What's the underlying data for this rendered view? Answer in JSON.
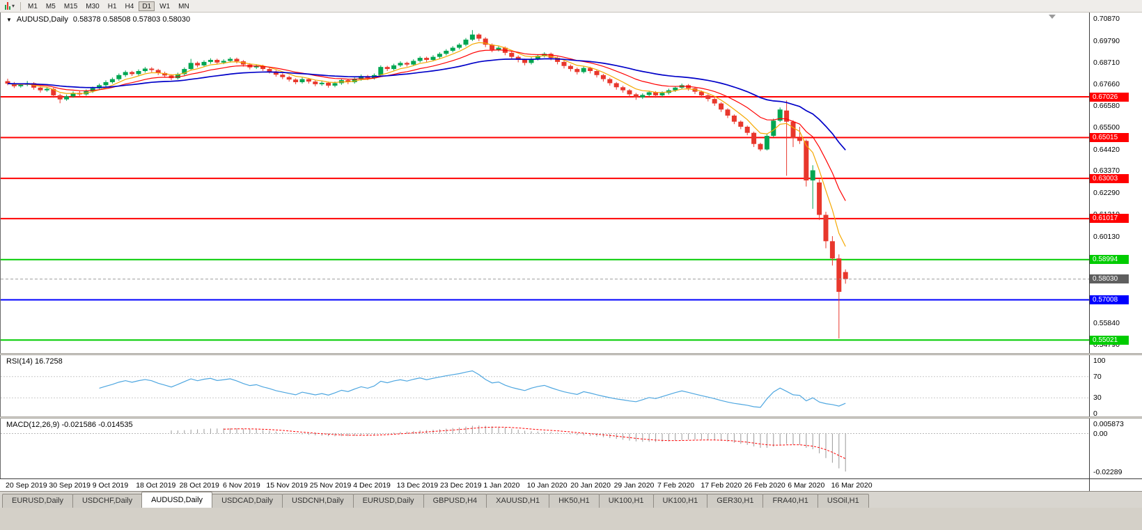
{
  "toolbar": {
    "icons": {
      "chart_menu": "candlestick-chart-icon",
      "dropdown": "chevron-down-icon",
      "shift_marker": "down-triangle-icon"
    },
    "timeframes": [
      {
        "label": "M1",
        "active": false
      },
      {
        "label": "M5",
        "active": false
      },
      {
        "label": "M15",
        "active": false
      },
      {
        "label": "M30",
        "active": false
      },
      {
        "label": "H1",
        "active": false
      },
      {
        "label": "H4",
        "active": false
      },
      {
        "label": "D1",
        "active": true
      },
      {
        "label": "W1",
        "active": false
      },
      {
        "label": "MN",
        "active": false
      }
    ]
  },
  "chart": {
    "title_marker": "▼",
    "symbol": "AUDUSD,Daily",
    "ohlc_line": "0.58378 0.58508 0.57803 0.58030",
    "scale": {
      "max": 0.7105,
      "min": 0.5448
    },
    "price_ticks": [
      {
        "label": "0.70870",
        "value": 0.7087
      },
      {
        "label": "0.69790",
        "value": 0.6979
      },
      {
        "label": "0.68710",
        "value": 0.6871
      },
      {
        "label": "0.67660",
        "value": 0.6766
      },
      {
        "label": "0.66580",
        "value": 0.6658
      },
      {
        "label": "0.65500",
        "value": 0.655
      },
      {
        "label": "0.64420",
        "value": 0.6442
      },
      {
        "label": "0.63370",
        "value": 0.6337
      },
      {
        "label": "0.62290",
        "value": 0.6229
      },
      {
        "label": "0.61210",
        "value": 0.6121
      },
      {
        "label": "0.60130",
        "value": 0.6013
      },
      {
        "label": "0.59050",
        "value": 0.5905
      },
      {
        "label": "0.57970",
        "value": 0.5797
      },
      {
        "label": "0.56890",
        "value": 0.5689
      },
      {
        "label": "0.55840",
        "value": 0.5584
      },
      {
        "label": "0.54790",
        "value": 0.5479
      }
    ],
    "levels": [
      {
        "label": "0.67026",
        "value": 0.67026,
        "color": "#ff0000"
      },
      {
        "label": "0.65015",
        "value": 0.65015,
        "color": "#ff0000"
      },
      {
        "label": "0.63003",
        "value": 0.63003,
        "color": "#ff0000"
      },
      {
        "label": "0.61017",
        "value": 0.61017,
        "color": "#ff0000"
      },
      {
        "label": "0.58994",
        "value": 0.58994,
        "color": "#00cc00"
      },
      {
        "label": "0.57008",
        "value": 0.57008,
        "color": "#0000ff"
      },
      {
        "label": "0.55021",
        "value": 0.55021,
        "color": "#00cc00"
      }
    ],
    "bid": {
      "label": "0.58030",
      "value": 0.5803,
      "color": "#5f5f5f"
    }
  },
  "rsi_panel": {
    "label": "RSI(14) 16.7258",
    "ticks": [
      {
        "label": "100",
        "value": 100
      },
      {
        "label": "70",
        "value": 70
      },
      {
        "label": "30",
        "value": 30
      },
      {
        "label": "0",
        "value": 0
      }
    ],
    "guide_levels": [
      70,
      30
    ],
    "line_color": "#4da6e0"
  },
  "macd_panel": {
    "label": "MACD(12,26,9) -0.021586 -0.014535",
    "axis_top": "0.005873",
    "axis_zero": "0.00",
    "axis_bottom": "-0.02289",
    "histogram_color": "#9a9a9a",
    "signal_color": "#ff0000"
  },
  "date_axis": [
    "20 Sep 2019",
    "30 Sep 2019",
    "9 Oct 2019",
    "18 Oct 2019",
    "28 Oct 2019",
    "6 Nov 2019",
    "15 Nov 2019",
    "25 Nov 2019",
    "4 Dec 2019",
    "13 Dec 2019",
    "23 Dec 2019",
    "1 Jan 2020",
    "10 Jan 2020",
    "20 Jan 2020",
    "29 Jan 2020",
    "7 Feb 2020",
    "17 Feb 2020",
    "26 Feb 2020",
    "6 Mar 2020",
    "16 Mar 2020"
  ],
  "tabs": [
    {
      "label": "EURUSD,Daily",
      "active": false
    },
    {
      "label": "USDCHF,Daily",
      "active": false
    },
    {
      "label": "AUDUSD,Daily",
      "active": true
    },
    {
      "label": "USDCAD,Daily",
      "active": false
    },
    {
      "label": "USDCNH,Daily",
      "active": false
    },
    {
      "label": "EURUSD,Daily",
      "active": false
    },
    {
      "label": "GBPUSD,H4",
      "active": false
    },
    {
      "label": "XAUUSD,H1",
      "active": false
    },
    {
      "label": "HK50,H1",
      "active": false
    },
    {
      "label": "UK100,H1",
      "active": false
    },
    {
      "label": "UK100,H1",
      "active": false
    },
    {
      "label": "GER30,H1",
      "active": false
    },
    {
      "label": "FRA40,H1",
      "active": false
    },
    {
      "label": "USOil,H1",
      "active": false
    }
  ],
  "colors": {
    "candle_up": "#00a651",
    "candle_down": "#e8372c",
    "bid_line": "#9c9c9c",
    "guide_dotted": "#c8c8c8"
  },
  "chart_data": {
    "type": "candlestick",
    "symbol": "AUDUSD",
    "timeframe": "Daily",
    "title": "AUDUSD,Daily 0.58378 0.58508 0.57803 0.58030",
    "y_range": [
      0.5448,
      0.7105
    ],
    "x_tick_labels": [
      "20 Sep 2019",
      "30 Sep 2019",
      "9 Oct 2019",
      "18 Oct 2019",
      "28 Oct 2019",
      "6 Nov 2019",
      "15 Nov 2019",
      "25 Nov 2019",
      "4 Dec 2019",
      "13 Dec 2019",
      "23 Dec 2019",
      "1 Jan 2020",
      "10 Jan 2020",
      "20 Jan 2020",
      "29 Jan 2020",
      "7 Feb 2020",
      "17 Feb 2020",
      "26 Feb 2020",
      "6 Mar 2020",
      "16 Mar 2020"
    ],
    "ohlc": [
      [
        0.678,
        0.6792,
        0.676,
        0.6768
      ],
      [
        0.6768,
        0.6776,
        0.6746,
        0.6755
      ],
      [
        0.6755,
        0.677,
        0.6748,
        0.6762
      ],
      [
        0.6762,
        0.6781,
        0.6755,
        0.677
      ],
      [
        0.677,
        0.6775,
        0.6738,
        0.6748
      ],
      [
        0.6748,
        0.6756,
        0.6724,
        0.6735
      ],
      [
        0.6735,
        0.6752,
        0.6728,
        0.6742
      ],
      [
        0.6742,
        0.6748,
        0.6698,
        0.671
      ],
      [
        0.671,
        0.6718,
        0.6671,
        0.669
      ],
      [
        0.669,
        0.6714,
        0.6683,
        0.6705
      ],
      [
        0.6705,
        0.673,
        0.6698,
        0.6722
      ],
      [
        0.6722,
        0.6731,
        0.6703,
        0.6715
      ],
      [
        0.6715,
        0.6739,
        0.6708,
        0.673
      ],
      [
        0.673,
        0.6753,
        0.6722,
        0.6745
      ],
      [
        0.6745,
        0.6768,
        0.6738,
        0.676
      ],
      [
        0.676,
        0.6784,
        0.6752,
        0.6775
      ],
      [
        0.6775,
        0.6798,
        0.6768,
        0.679
      ],
      [
        0.679,
        0.6818,
        0.6782,
        0.681
      ],
      [
        0.681,
        0.6833,
        0.6801,
        0.6825
      ],
      [
        0.6825,
        0.6831,
        0.6806,
        0.6815
      ],
      [
        0.6815,
        0.6838,
        0.6808,
        0.683
      ],
      [
        0.683,
        0.685,
        0.6822,
        0.6842
      ],
      [
        0.6842,
        0.6849,
        0.6824,
        0.6835
      ],
      [
        0.6835,
        0.6841,
        0.681,
        0.682
      ],
      [
        0.682,
        0.6827,
        0.6798,
        0.6808
      ],
      [
        0.6808,
        0.6814,
        0.6785,
        0.6795
      ],
      [
        0.6795,
        0.6822,
        0.6788,
        0.6815
      ],
      [
        0.6815,
        0.6848,
        0.6808,
        0.684
      ],
      [
        0.684,
        0.689,
        0.6833,
        0.687
      ],
      [
        0.687,
        0.6877,
        0.6848,
        0.6858
      ],
      [
        0.6858,
        0.6883,
        0.6851,
        0.6875
      ],
      [
        0.6875,
        0.6893,
        0.6866,
        0.6885
      ],
      [
        0.6885,
        0.6891,
        0.6862,
        0.6872
      ],
      [
        0.6872,
        0.6888,
        0.6864,
        0.688
      ],
      [
        0.688,
        0.6898,
        0.6872,
        0.689
      ],
      [
        0.689,
        0.6896,
        0.6868,
        0.6878
      ],
      [
        0.6878,
        0.6884,
        0.6852,
        0.6862
      ],
      [
        0.6862,
        0.6869,
        0.6838,
        0.6848
      ],
      [
        0.6848,
        0.6863,
        0.684,
        0.6855
      ],
      [
        0.6855,
        0.6861,
        0.683,
        0.684
      ],
      [
        0.684,
        0.6847,
        0.6818,
        0.6828
      ],
      [
        0.6828,
        0.6834,
        0.6802,
        0.6812
      ],
      [
        0.6812,
        0.6819,
        0.679,
        0.68
      ],
      [
        0.68,
        0.6807,
        0.6778,
        0.6788
      ],
      [
        0.6788,
        0.6794,
        0.6765,
        0.6775
      ],
      [
        0.6775,
        0.6798,
        0.6768,
        0.679
      ],
      [
        0.679,
        0.6796,
        0.6768,
        0.6778
      ],
      [
        0.6778,
        0.6784,
        0.6755,
        0.6765
      ],
      [
        0.6765,
        0.678,
        0.6757,
        0.6772
      ],
      [
        0.6772,
        0.6778,
        0.6748,
        0.6758
      ],
      [
        0.6758,
        0.6778,
        0.675,
        0.677
      ],
      [
        0.677,
        0.6793,
        0.6762,
        0.6785
      ],
      [
        0.6785,
        0.6791,
        0.6765,
        0.6775
      ],
      [
        0.6775,
        0.6798,
        0.6768,
        0.679
      ],
      [
        0.679,
        0.6813,
        0.6782,
        0.6805
      ],
      [
        0.6805,
        0.6811,
        0.6785,
        0.6795
      ],
      [
        0.6795,
        0.6818,
        0.6788,
        0.681
      ],
      [
        0.681,
        0.6858,
        0.6803,
        0.685
      ],
      [
        0.685,
        0.6856,
        0.683,
        0.684
      ],
      [
        0.684,
        0.6866,
        0.6833,
        0.6858
      ],
      [
        0.6858,
        0.6878,
        0.685,
        0.687
      ],
      [
        0.687,
        0.6876,
        0.6852,
        0.6862
      ],
      [
        0.6862,
        0.6888,
        0.6855,
        0.688
      ],
      [
        0.688,
        0.6903,
        0.6872,
        0.6895
      ],
      [
        0.6895,
        0.6901,
        0.6875,
        0.6885
      ],
      [
        0.6885,
        0.6908,
        0.6878,
        0.69
      ],
      [
        0.69,
        0.6923,
        0.6892,
        0.6915
      ],
      [
        0.6915,
        0.6938,
        0.6907,
        0.693
      ],
      [
        0.693,
        0.6953,
        0.6922,
        0.6945
      ],
      [
        0.6945,
        0.6968,
        0.6937,
        0.696
      ],
      [
        0.696,
        0.6993,
        0.6952,
        0.6985
      ],
      [
        0.6985,
        0.7032,
        0.6978,
        0.701
      ],
      [
        0.701,
        0.7016,
        0.6978,
        0.699
      ],
      [
        0.699,
        0.6997,
        0.6948,
        0.696
      ],
      [
        0.696,
        0.6966,
        0.6923,
        0.6935
      ],
      [
        0.6935,
        0.6953,
        0.6927,
        0.6945
      ],
      [
        0.6945,
        0.6951,
        0.6908,
        0.692
      ],
      [
        0.692,
        0.6926,
        0.6888,
        0.69
      ],
      [
        0.69,
        0.6907,
        0.6873,
        0.6885
      ],
      [
        0.6885,
        0.6891,
        0.6858,
        0.687
      ],
      [
        0.687,
        0.6898,
        0.6862,
        0.689
      ],
      [
        0.689,
        0.6913,
        0.6882,
        0.6905
      ],
      [
        0.6905,
        0.6923,
        0.6897,
        0.6915
      ],
      [
        0.6915,
        0.6921,
        0.6883,
        0.6895
      ],
      [
        0.6895,
        0.6901,
        0.6863,
        0.6875
      ],
      [
        0.6875,
        0.6881,
        0.6843,
        0.6855
      ],
      [
        0.6855,
        0.6862,
        0.6828,
        0.684
      ],
      [
        0.684,
        0.6847,
        0.6813,
        0.6825
      ],
      [
        0.6825,
        0.6853,
        0.6818,
        0.6845
      ],
      [
        0.6845,
        0.6851,
        0.6818,
        0.683
      ],
      [
        0.683,
        0.6837,
        0.6798,
        0.681
      ],
      [
        0.681,
        0.6816,
        0.6778,
        0.679
      ],
      [
        0.679,
        0.6797,
        0.6758,
        0.677
      ],
      [
        0.677,
        0.6776,
        0.6738,
        0.675
      ],
      [
        0.675,
        0.6757,
        0.6723,
        0.6735
      ],
      [
        0.6735,
        0.6741,
        0.6703,
        0.6715
      ],
      [
        0.6715,
        0.6722,
        0.6688,
        0.67
      ],
      [
        0.67,
        0.672,
        0.6692,
        0.6712
      ],
      [
        0.6712,
        0.6733,
        0.6704,
        0.6725
      ],
      [
        0.6725,
        0.6731,
        0.6698,
        0.671
      ],
      [
        0.671,
        0.673,
        0.6702,
        0.6722
      ],
      [
        0.6722,
        0.6743,
        0.6714,
        0.6735
      ],
      [
        0.6735,
        0.6756,
        0.6727,
        0.6748
      ],
      [
        0.6748,
        0.6768,
        0.674,
        0.676
      ],
      [
        0.676,
        0.6766,
        0.6733,
        0.6745
      ],
      [
        0.6745,
        0.6751,
        0.6716,
        0.6728
      ],
      [
        0.6728,
        0.6734,
        0.6698,
        0.671
      ],
      [
        0.671,
        0.6716,
        0.668,
        0.6692
      ],
      [
        0.6692,
        0.6698,
        0.6658,
        0.667
      ],
      [
        0.667,
        0.6676,
        0.6628,
        0.664
      ],
      [
        0.664,
        0.6646,
        0.6598,
        0.661
      ],
      [
        0.661,
        0.6616,
        0.6568,
        0.658
      ],
      [
        0.658,
        0.6586,
        0.6543,
        0.6555
      ],
      [
        0.6555,
        0.6561,
        0.6513,
        0.6525
      ],
      [
        0.6525,
        0.6531,
        0.6455,
        0.647
      ],
      [
        0.647,
        0.6476,
        0.6434,
        0.6443
      ],
      [
        0.6443,
        0.652,
        0.6438,
        0.651
      ],
      [
        0.651,
        0.6595,
        0.6504,
        0.6585
      ],
      [
        0.6585,
        0.665,
        0.6578,
        0.664
      ],
      [
        0.6635,
        0.6685,
        0.6313,
        0.658
      ],
      [
        0.658,
        0.6587,
        0.6455,
        0.65
      ],
      [
        0.65,
        0.6555,
        0.647,
        0.6485
      ],
      [
        0.6485,
        0.6492,
        0.626,
        0.629
      ],
      [
        0.629,
        0.6365,
        0.615,
        0.634
      ],
      [
        0.628,
        0.6295,
        0.6095,
        0.612
      ],
      [
        0.612,
        0.6135,
        0.5955,
        0.599
      ],
      [
        0.599,
        0.6015,
        0.587,
        0.5905
      ],
      [
        0.5905,
        0.5925,
        0.551,
        0.574
      ],
      [
        0.58378,
        0.58508,
        0.57803,
        0.5803
      ]
    ],
    "moving_averages": [
      {
        "period": 6,
        "method": "ema",
        "color": "#f5a800"
      },
      {
        "period": 14,
        "method": "ema",
        "color": "#ff0000"
      },
      {
        "period": 35,
        "method": "ema",
        "color": "#0000c8"
      }
    ],
    "indicators": [
      {
        "name": "RSI",
        "period": 14,
        "current": 16.7258
      },
      {
        "name": "MACD",
        "fast": 12,
        "slow": 26,
        "signal": 9,
        "current_main": -0.021586,
        "current_signal": -0.014535
      }
    ],
    "horizontal_levels": [
      0.67026,
      0.65015,
      0.63003,
      0.61017,
      0.58994,
      0.57008,
      0.55021
    ],
    "current_price": 0.5803
  }
}
